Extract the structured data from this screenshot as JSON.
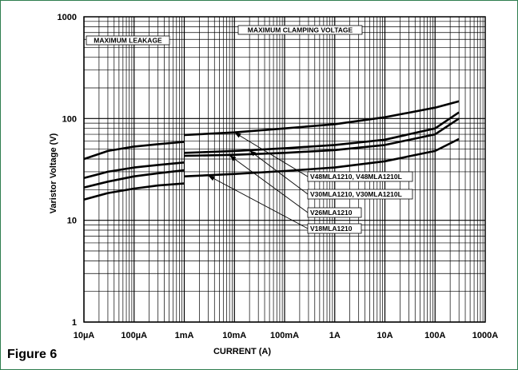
{
  "figure_label": "Figure 6",
  "chart_data": {
    "type": "line",
    "xlabel": "CURRENT (A)",
    "ylabel": "Varistor Voltage (V)",
    "x_scale": "log",
    "y_scale": "log",
    "xlim": [
      1e-05,
      1000
    ],
    "ylim": [
      1,
      1000
    ],
    "grid": true,
    "x_tick_labels": [
      "10µA",
      "100µA",
      "1mA",
      "10mA",
      "100mA",
      "1A",
      "10A",
      "100A",
      "1000A"
    ],
    "y_tick_labels": [
      "1",
      "10",
      "100",
      "1000"
    ],
    "region_labels": {
      "leakage": "MAXIMUM LEAKAGE",
      "clamping": "MAXIMUM CLAMPING VOLTAGE"
    },
    "series": [
      {
        "name": "V48MLA1210, V48MLA1210L",
        "leakage": {
          "x": [
            1e-05,
            3e-05,
            0.0001,
            0.0003,
            0.001
          ],
          "y": [
            40,
            48,
            53,
            56,
            59
          ]
        },
        "clamping": {
          "x": [
            0.001,
            0.01,
            0.1,
            1,
            10,
            100,
            300
          ],
          "y": [
            69,
            73,
            80,
            88,
            103,
            128,
            148
          ]
        }
      },
      {
        "name": "V30MLA1210, V30MLA1210L",
        "leakage": {
          "x": [
            1e-05,
            3e-05,
            0.0001,
            0.0003,
            0.001
          ],
          "y": [
            26,
            30,
            33,
            35,
            37
          ]
        },
        "clamping": {
          "x": [
            0.001,
            0.01,
            0.1,
            1,
            10,
            100,
            300
          ],
          "y": [
            46,
            48,
            51,
            55,
            62,
            80,
            115
          ]
        }
      },
      {
        "name": "V26MLA1210",
        "leakage": {
          "x": [
            1e-05,
            3e-05,
            0.0001,
            0.0003,
            0.001
          ],
          "y": [
            21,
            24,
            27,
            29,
            31
          ]
        },
        "clamping": {
          "x": [
            0.001,
            0.01,
            0.1,
            1,
            10,
            100,
            300
          ],
          "y": [
            43,
            44,
            46,
            49,
            55,
            70,
            100
          ]
        }
      },
      {
        "name": "V18MLA1210",
        "leakage": {
          "x": [
            1e-05,
            3e-05,
            0.0001,
            0.0003,
            0.001
          ],
          "y": [
            16,
            18.5,
            20.5,
            22,
            23
          ]
        },
        "clamping": {
          "x": [
            0.001,
            0.01,
            0.1,
            1,
            10,
            100,
            300
          ],
          "y": [
            27,
            28.5,
            30.5,
            33,
            38,
            48,
            63
          ]
        }
      }
    ],
    "annotations": [
      {
        "text": "V48MLA1210, V48MLA1210L",
        "arrow_to": {
          "x": 0.01,
          "y": 73
        }
      },
      {
        "text": "V30MLA1210, V30MLA1210L",
        "arrow_to": {
          "x": 0.02,
          "y": 48.5
        }
      },
      {
        "text": "V26MLA1210",
        "arrow_to": {
          "x": 0.008,
          "y": 43.5
        }
      },
      {
        "text": "V18MLA1210",
        "arrow_to": {
          "x": 0.003,
          "y": 27.5
        }
      }
    ]
  }
}
